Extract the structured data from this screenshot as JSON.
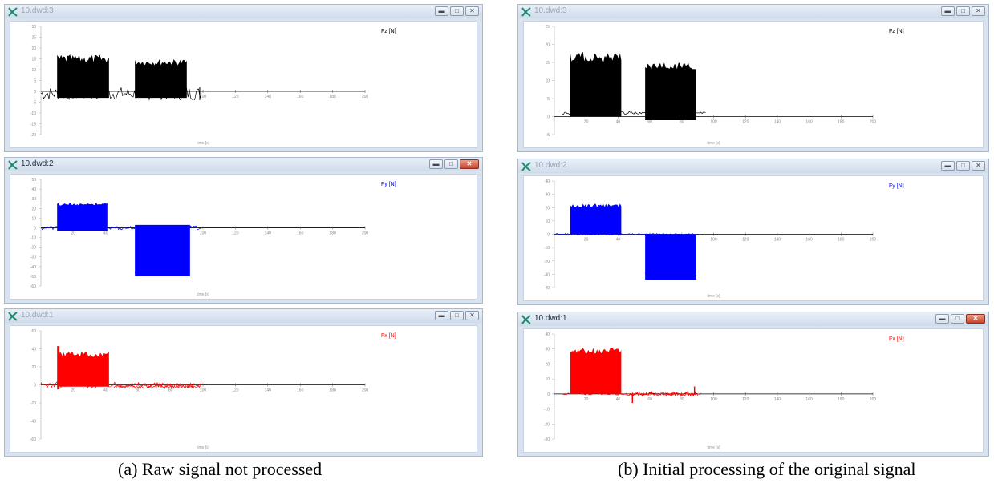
{
  "windows": [
    {
      "id": "a-fz",
      "title": "10.dwd:3",
      "series_label": "Fz [N]",
      "color": "#000000",
      "active": false,
      "yticks": [
        "30",
        "25",
        "20",
        "15",
        "10",
        "5",
        "0",
        "-5",
        "-10",
        "-15",
        "-20"
      ],
      "xticks": [
        "20",
        "40",
        "60",
        "80",
        "100",
        "120",
        "140",
        "160",
        "180",
        "200"
      ],
      "xlabel": "time [s]"
    },
    {
      "id": "a-fy",
      "title": "10.dwd:2",
      "series_label": "Fy [N]",
      "color": "#0000ff",
      "active": true,
      "yticks": [
        "50",
        "40",
        "30",
        "20",
        "10",
        "0",
        "-10",
        "-20",
        "-30",
        "-40",
        "-50",
        "-60"
      ],
      "xticks": [
        "20",
        "40",
        "60",
        "80",
        "100",
        "120",
        "140",
        "160",
        "180",
        "200"
      ],
      "xlabel": "time [s]"
    },
    {
      "id": "a-fx",
      "title": "10.dwd:1",
      "series_label": "Fx [N]",
      "color": "#ff0000",
      "active": false,
      "yticks": [
        "60",
        "40",
        "20",
        "0",
        "-20",
        "-40",
        "-60"
      ],
      "xticks": [
        "20",
        "40",
        "60",
        "80",
        "100",
        "120",
        "140",
        "160",
        "180",
        "200"
      ],
      "xlabel": "time [s]"
    },
    {
      "id": "b-fz",
      "title": "10.dwd:3",
      "series_label": "Fz [N]",
      "color": "#000000",
      "active": false,
      "yticks": [
        "25",
        "20",
        "15",
        "10",
        "5",
        "0",
        "-5"
      ],
      "xticks": [
        "20",
        "40",
        "60",
        "80",
        "100",
        "120",
        "140",
        "160",
        "180",
        "200"
      ],
      "xlabel": "time [s]"
    },
    {
      "id": "b-fy",
      "title": "10.dwd:2",
      "series_label": "Fy [N]",
      "color": "#0000ff",
      "active": false,
      "yticks": [
        "40",
        "30",
        "20",
        "10",
        "0",
        "-10",
        "-20",
        "-30",
        "-40"
      ],
      "xticks": [
        "20",
        "40",
        "60",
        "80",
        "100",
        "120",
        "140",
        "160",
        "180",
        "200"
      ],
      "xlabel": "time [s]"
    },
    {
      "id": "b-fx",
      "title": "10.dwd:1",
      "series_label": "Fx [N]",
      "color": "#ff0000",
      "active": true,
      "yticks": [
        "40",
        "30",
        "20",
        "10",
        "0",
        "-10",
        "-20",
        "-30"
      ],
      "xticks": [
        "20",
        "40",
        "60",
        "80",
        "100",
        "120",
        "140",
        "160",
        "180",
        "200"
      ],
      "xlabel": "time [s]"
    }
  ],
  "captions": {
    "a": "(a) Raw signal not processed",
    "b": "(b) Initial processing of the original signal"
  },
  "icons": {
    "app": "app-logo-icon",
    "minimize": "minimize-icon",
    "restore": "restore-icon",
    "close": "close-icon"
  },
  "colors": {
    "fz": "#000000",
    "fy": "#0000ff",
    "fx": "#ff0000",
    "accent": "#1a8a6a"
  }
}
